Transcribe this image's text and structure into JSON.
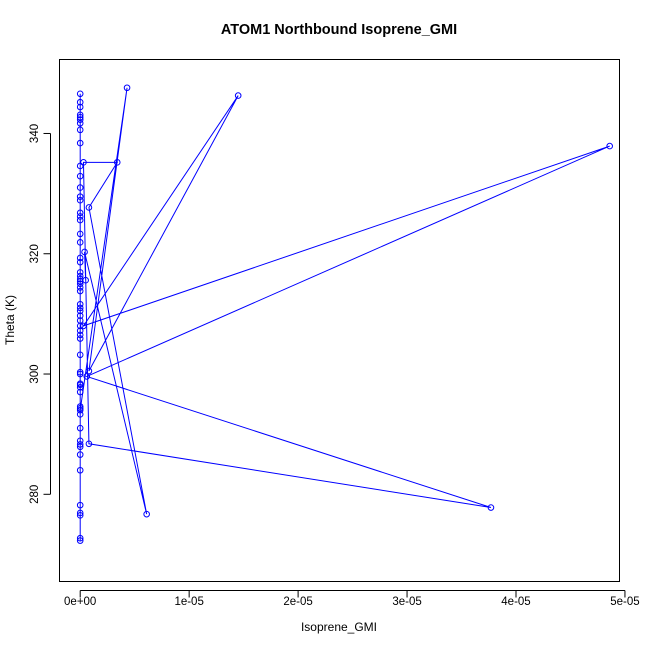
{
  "chart_data": {
    "type": "line",
    "title": "ATOM1 Northbound Isoprene_GMI",
    "xlabel": "Isoprene_GMI",
    "ylabel": "Theta (K)",
    "xlim": [
      -1.9e-06,
      4.95e-05
    ],
    "ylim": [
      265.5,
      352.3
    ],
    "x_ticks": [
      0,
      1e-05,
      2e-05,
      3e-05,
      4e-05,
      5e-05
    ],
    "x_tick_labels": [
      "0e+00",
      "1e-05",
      "2e-05",
      "3e-05",
      "4e-05",
      "5e-05"
    ],
    "y_ticks": [
      280,
      300,
      320,
      340
    ],
    "y_tick_labels": [
      "280",
      "300",
      "320",
      "340"
    ],
    "grid": false,
    "legend": "none",
    "markers": "open-circle",
    "color": "#0000ff",
    "series": [
      {
        "x": [
          0,
          0,
          0,
          0,
          0,
          0,
          0,
          0,
          0,
          0,
          0,
          0,
          0,
          0,
          0,
          0,
          0,
          0,
          0,
          0,
          0,
          0,
          0,
          0,
          0,
          0,
          0,
          0,
          0,
          0,
          0,
          0,
          0,
          0,
          0,
          0,
          0,
          0,
          0,
          0,
          0,
          0,
          0,
          0,
          0,
          0,
          0,
          0,
          0,
          0,
          0,
          0,
          0,
          0,
          0,
          0,
          0,
          0,
          0,
          4.3e-06,
          8e-07,
          1.45e-05,
          3e-07,
          4.86e-05,
          6e-07,
          3.77e-05,
          8e-07,
          3e-07,
          3.4e-06,
          8e-07,
          6.1e-06,
          4e-07,
          5e-07
        ],
        "y": [
          272.3,
          272.7,
          276.5,
          276.9,
          278.2,
          284.0,
          286.6,
          287.9,
          288.3,
          288.9,
          291.0,
          293.3,
          294.3,
          294.6,
          297.0,
          297.8,
          298.4,
          300.3,
          303.2,
          305.9,
          306.5,
          307.2,
          308.0,
          308.9,
          309.7,
          310.5,
          311.0,
          311.6,
          313.8,
          314.4,
          315.0,
          315.4,
          315.8,
          316.3,
          316.9,
          318.6,
          319.3,
          321.9,
          323.3,
          325.6,
          326.2,
          326.8,
          328.9,
          329.5,
          331.0,
          332.9,
          334.6,
          338.4,
          340.6,
          341.7,
          342.3,
          342.7,
          343.1,
          344.4,
          345.2,
          346.6,
          298.2,
          300.0,
          294.0,
          347.6,
          300.5,
          346.3,
          308.0,
          337.9,
          299.6,
          277.8,
          288.4,
          335.2,
          335.2,
          327.7,
          276.7,
          320.3,
          315.6
        ]
      }
    ]
  }
}
